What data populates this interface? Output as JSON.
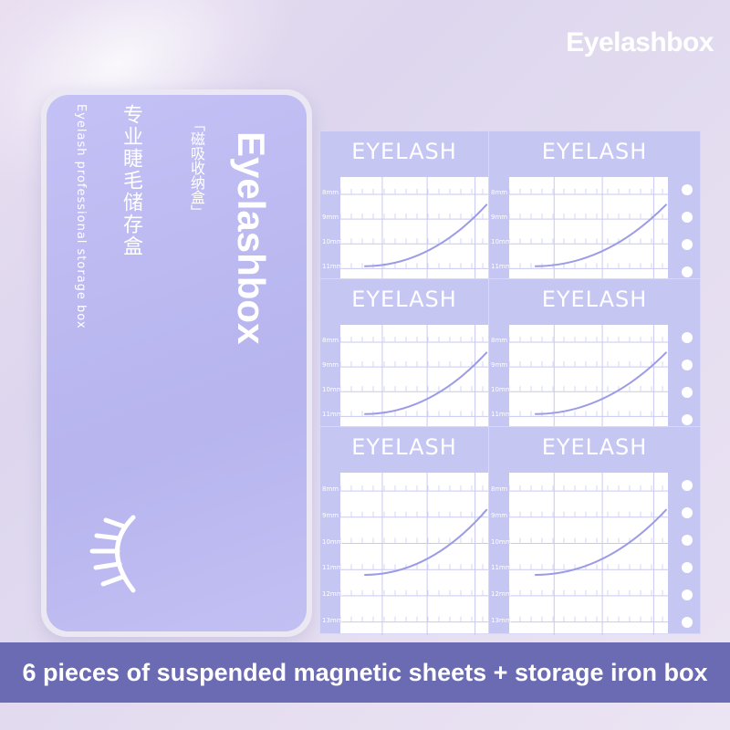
{
  "brand": "Eyelashbox",
  "box": {
    "logo": "Eyelashbox",
    "magnetic": "「磁吸收纳盒」",
    "cn_title": "专业睫毛储存盒",
    "en_title": "Eyelash professional storage box"
  },
  "sheet_title": "EYELASH",
  "sheets": [
    {
      "labels": [
        "8mm",
        "9mm",
        "10mm",
        "11mm"
      ]
    },
    {
      "labels": [
        "8mm",
        "9mm",
        "10mm",
        "11mm"
      ]
    },
    {
      "labels": [
        "8mm",
        "9mm",
        "10mm",
        "11mm"
      ]
    },
    {
      "labels": [
        "8mm",
        "9mm",
        "10mm",
        "11mm"
      ]
    },
    {
      "labels": [
        "8mm",
        "9mm",
        "10mm",
        "11mm",
        "12mm",
        "13mm"
      ]
    },
    {
      "labels": [
        "8mm",
        "9mm",
        "10mm",
        "11mm",
        "12mm",
        "13mm"
      ]
    }
  ],
  "banner": "6 pieces of suspended magnetic sheets + storage iron box",
  "colors": {
    "lid": "#b9b6f0",
    "sheet": "#c6c6f3",
    "banner": "#6a6bb3"
  }
}
